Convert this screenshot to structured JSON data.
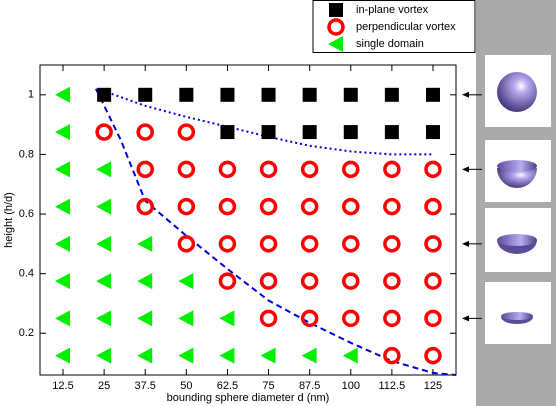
{
  "chart_data": {
    "type": "scatter",
    "x_label": "bounding sphere diameter d (nm)",
    "y_label": "height (h/d)",
    "xlim": [
      5.5,
      132
    ],
    "ylim": [
      0.06,
      1.1
    ],
    "xticks": [
      12.5,
      25,
      37.5,
      50,
      62.5,
      75,
      87.5,
      100,
      112.5,
      125
    ],
    "yticks": [
      0.2,
      0.4,
      0.6,
      0.8,
      1
    ],
    "series": [
      {
        "name": "in-plane vortex",
        "color": "#000000",
        "marker": "square",
        "x": [
          25,
          37.5,
          50,
          62.5,
          75,
          87.5,
          100,
          112.5,
          125,
          62.5,
          75,
          87.5,
          100,
          112.5,
          125
        ],
        "y": [
          1,
          1,
          1,
          1,
          1,
          1,
          1,
          1,
          1,
          0.875,
          0.875,
          0.875,
          0.875,
          0.875,
          0.875
        ]
      },
      {
        "name": "perpendicular vortex",
        "color": "#ff0000",
        "marker": "circle",
        "x": [
          25,
          37.5,
          50,
          37.5,
          50,
          62.5,
          75,
          87.5,
          100,
          112.5,
          125,
          37.5,
          50,
          62.5,
          75,
          87.5,
          100,
          112.5,
          125,
          50,
          62.5,
          75,
          87.5,
          100,
          112.5,
          125,
          62.5,
          75,
          87.5,
          100,
          112.5,
          125,
          75,
          87.5,
          100,
          112.5,
          125,
          112.5,
          125
        ],
        "y": [
          0.875,
          0.875,
          0.875,
          0.75,
          0.75,
          0.75,
          0.75,
          0.75,
          0.75,
          0.75,
          0.75,
          0.625,
          0.625,
          0.625,
          0.625,
          0.625,
          0.625,
          0.625,
          0.625,
          0.5,
          0.5,
          0.5,
          0.5,
          0.5,
          0.5,
          0.5,
          0.375,
          0.375,
          0.375,
          0.375,
          0.375,
          0.375,
          0.25,
          0.25,
          0.25,
          0.25,
          0.25,
          0.125,
          0.125
        ]
      },
      {
        "name": "single domain",
        "color": "#00ee00",
        "marker": "triangle",
        "x": [
          12.5,
          12.5,
          12.5,
          25,
          12.5,
          25,
          12.5,
          25,
          37.5,
          12.5,
          25,
          37.5,
          50,
          12.5,
          25,
          37.5,
          50,
          62.5,
          12.5,
          25,
          37.5,
          50,
          62.5,
          75,
          87.5,
          100
        ],
        "y": [
          1,
          0.875,
          0.75,
          0.75,
          0.625,
          0.625,
          0.5,
          0.5,
          0.5,
          0.375,
          0.375,
          0.375,
          0.375,
          0.25,
          0.25,
          0.25,
          0.25,
          0.25,
          0.125,
          0.125,
          0.125,
          0.125,
          0.125,
          0.125,
          0.125,
          0.125
        ]
      }
    ],
    "curves": [
      {
        "color": "#0000dd",
        "style": "dashed",
        "x": [
          22.5,
          30,
          37.5,
          50,
          62.5,
          75,
          87.5,
          100,
          112.5,
          125,
          132
        ],
        "y": [
          1.02,
          0.85,
          0.644,
          0.527,
          0.416,
          0.31,
          0.235,
          0.168,
          0.107,
          0.067,
          0.06
        ]
      },
      {
        "color": "#0000dd",
        "style": "dotted",
        "x": [
          23,
          37.5,
          50,
          62.5,
          75,
          87.5,
          100,
          112.5,
          125
        ],
        "y": [
          1.02,
          0.963,
          0.926,
          0.893,
          0.859,
          0.829,
          0.81,
          0.8,
          0.8
        ]
      }
    ]
  }
}
